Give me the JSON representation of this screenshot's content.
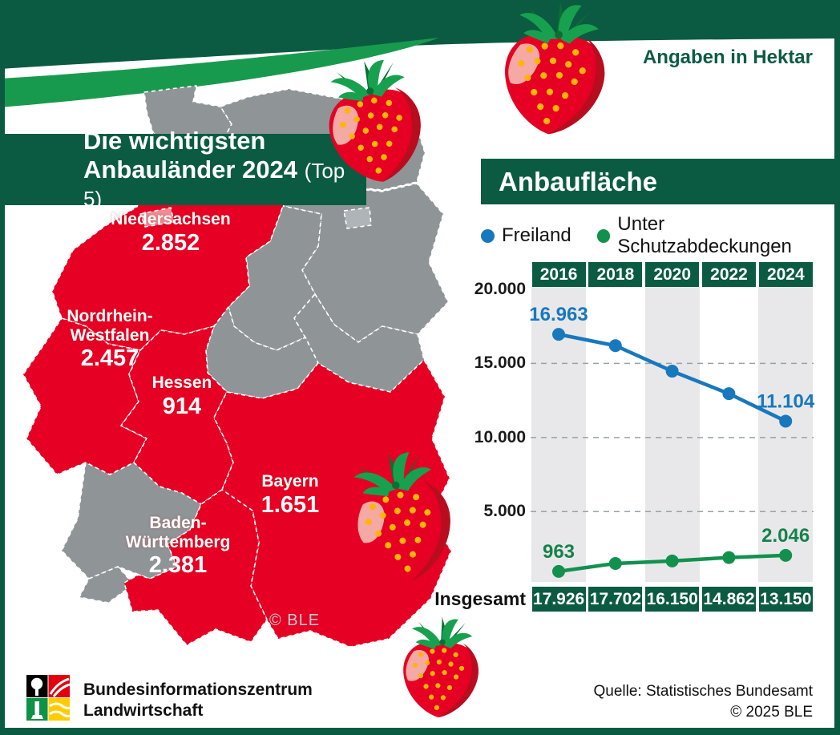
{
  "header": {
    "note": "Angaben in Hektar",
    "title_line1": "Die wichtigsten",
    "title_line2": "Anbauländer 2024",
    "title_suffix": "(Top 5)"
  },
  "map": {
    "copyright": "© BLE",
    "states": [
      {
        "name": "Niedersachsen",
        "value": "2.852"
      },
      {
        "name": "Nordrhein-\nWestfalen",
        "value": "2.457"
      },
      {
        "name": "Hessen",
        "value": "914"
      },
      {
        "name": "Bayern",
        "value": "1.651"
      },
      {
        "name": "Baden-\nWürttemberg",
        "value": "2.381"
      }
    ],
    "colors": {
      "highlighted": "#e60023",
      "other": "#8f9497",
      "bremen": "#ef8d92",
      "berlin": "#aeb4b7"
    }
  },
  "chart_data": {
    "type": "line",
    "title": "Anbaufläche",
    "unit_note": "Angaben in Hektar",
    "categories": [
      "2016",
      "2018",
      "2020",
      "2022",
      "2024"
    ],
    "ylim": [
      0,
      20000
    ],
    "yticks": [
      {
        "label": "20.000",
        "value": 20000
      },
      {
        "label": "15.000",
        "value": 15000
      },
      {
        "label": "10.000",
        "value": 10000
      },
      {
        "label": "5.000",
        "value": 5000
      }
    ],
    "grid": {
      "horizontal_dashed_at": [
        15000,
        10000,
        5000
      ]
    },
    "legend_position": "top",
    "series": [
      {
        "name": "Freiland",
        "color": "#1878be",
        "label_color": "#1878be",
        "values": [
          16963,
          16200,
          14480,
          12960,
          11104
        ],
        "point_labels": [
          "16.963",
          "",
          "",
          "",
          "11.104"
        ]
      },
      {
        "name": "Unter Schutzabdeckungen",
        "color": "#12914e",
        "label_color": "#15824a",
        "values": [
          963,
          1500,
          1670,
          1900,
          2046
        ],
        "point_labels": [
          "963",
          "",
          "",
          "",
          "2.046"
        ]
      }
    ],
    "totals": {
      "label": "Insgesamt",
      "values": [
        "17.926",
        "17.702",
        "16.150",
        "14.862",
        "13.150"
      ]
    }
  },
  "footer": {
    "org_line1": "Bundesinformationszentrum",
    "org_line2": "Landwirtschaft",
    "source_line1": "Quelle: Statistisches Bundesamt",
    "source_line2": "© 2025 BLE"
  },
  "theme": {
    "dark_green": "#0b5b42",
    "swoosh_green": "#189a4e",
    "column_band": "#e8e8ea"
  }
}
